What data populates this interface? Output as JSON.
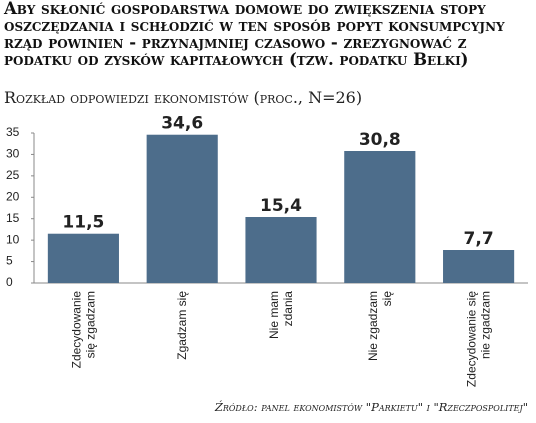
{
  "chart_data": {
    "type": "bar",
    "title": "Aby skłonić gospodarstwa domowe do zwiększenia stopy oszczędzania i schłodzić w ten sposób popyt konsumpcyjny rząd powinien - przynajmniej czasowo - zrezygnować z podatku od zysków kapitałowych (tzw. podatku Belki)",
    "subtitle": "Rozkład odpowiedzi ekonomistów (proc., N=26)",
    "source": "Źródło: panel ekonomistów \"Parkietu\" i \"Rzeczpospolitej\"",
    "categories": [
      "Zdecydowanie\nsię zgadzam",
      "Zgadzam się",
      "Nie mam\nzdania",
      "Nie zgadzam\nsię",
      "Zdecydowanie się\nnie zgadzam"
    ],
    "values": [
      11.5,
      34.6,
      15.4,
      30.8,
      7.7
    ],
    "value_labels": [
      "11,5",
      "34,6",
      "15,4",
      "30,8",
      "7,7"
    ],
    "color": "#4d6d8b",
    "ylim": [
      0,
      35
    ],
    "yticks": [
      0,
      5,
      10,
      15,
      20,
      25,
      30,
      35
    ]
  }
}
